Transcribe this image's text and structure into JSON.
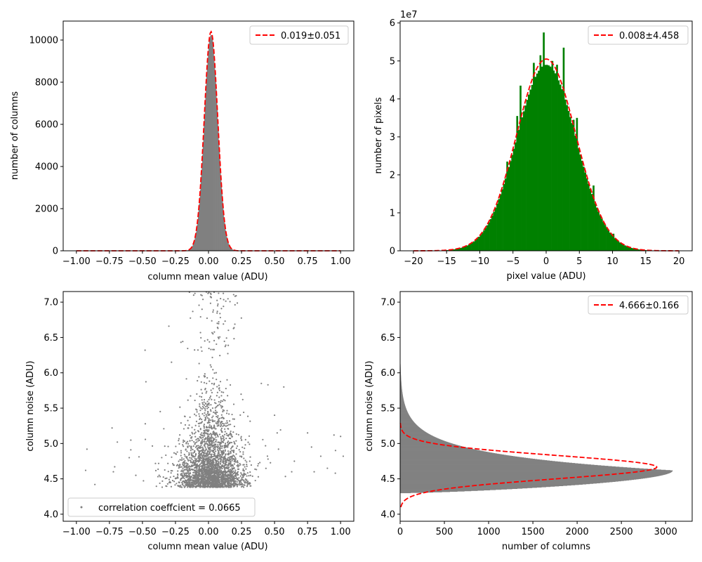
{
  "colors": {
    "gray": "#808080",
    "green": "#008000",
    "red": "#ff0000"
  },
  "chart_data": [
    {
      "type": "histogram",
      "xlabel": "column mean value (ADU)",
      "ylabel": "number of columns",
      "xlim": [
        -1.1,
        1.1
      ],
      "ylim": [
        0,
        10900
      ],
      "xticks": [
        -1.0,
        -0.75,
        -0.5,
        -0.25,
        0.0,
        0.25,
        0.5,
        0.75,
        1.0
      ],
      "xtick_labels": [
        "−1.00",
        "−0.75",
        "−0.50",
        "−0.25",
        "0.00",
        "0.25",
        "0.50",
        "0.75",
        "1.00"
      ],
      "yticks": [
        0,
        2000,
        4000,
        6000,
        8000,
        10000
      ],
      "ytick_labels": [
        "0",
        "2000",
        "4000",
        "6000",
        "8000",
        "10000"
      ],
      "fit": {
        "mu": 0.019,
        "sigma": 0.051,
        "peak": 10400,
        "range": [
          -1.0,
          1.0
        ]
      },
      "legend_label": "0.019±0.051",
      "legend_loc": "upper right"
    },
    {
      "type": "histogram",
      "xlabel": "pixel value (ADU)",
      "ylabel": "number of pixels",
      "offset_text": "1e7",
      "xlim": [
        -22,
        22
      ],
      "ylim": [
        0,
        6.05
      ],
      "xticks": [
        -20,
        -15,
        -10,
        -5,
        0,
        5,
        10,
        15,
        20
      ],
      "xtick_labels": [
        "−20",
        "−15",
        "−10",
        "−5",
        "0",
        "5",
        "10",
        "15",
        "20"
      ],
      "yticks": [
        0,
        1,
        2,
        3,
        4,
        5,
        6
      ],
      "ytick_labels": [
        "0",
        "1",
        "2",
        "3",
        "4",
        "5",
        "6"
      ],
      "fit": {
        "mu": 0.008,
        "sigma": 4.458,
        "peak": 5.05,
        "range": [
          -20,
          20
        ]
      },
      "spikes": [
        {
          "x": -6.0,
          "y": 2.35
        },
        {
          "x": -4.5,
          "y": 3.55
        },
        {
          "x": -4.0,
          "y": 4.35
        },
        {
          "x": -2.0,
          "y": 4.95
        },
        {
          "x": -1.0,
          "y": 5.15
        },
        {
          "x": -0.5,
          "y": 5.75
        },
        {
          "x": 0.8,
          "y": 5.0
        },
        {
          "x": 1.5,
          "y": 4.9
        },
        {
          "x": 2.5,
          "y": 5.35
        },
        {
          "x": 4.0,
          "y": 3.45
        },
        {
          "x": 4.5,
          "y": 3.5
        },
        {
          "x": 7.0,
          "y": 1.72
        },
        {
          "x": 10.0,
          "y": 0.45
        }
      ],
      "legend_label": "0.008±4.458",
      "legend_loc": "upper right"
    },
    {
      "type": "scatter",
      "xlabel": "column mean value (ADU)",
      "ylabel": "column noise (ADU)",
      "xlim": [
        -1.1,
        1.1
      ],
      "ylim": [
        3.9,
        7.15
      ],
      "xticks": [
        -1.0,
        -0.75,
        -0.5,
        -0.25,
        0.0,
        0.25,
        0.5,
        0.75,
        1.0
      ],
      "xtick_labels": [
        "−1.00",
        "−0.75",
        "−0.50",
        "−0.25",
        "0.00",
        "0.25",
        "0.50",
        "0.75",
        "1.00"
      ],
      "yticks": [
        4.0,
        4.5,
        5.0,
        5.5,
        6.0,
        6.5,
        7.0
      ],
      "ytick_labels": [
        "4.0",
        "4.5",
        "5.0",
        "5.5",
        "6.0",
        "6.5",
        "7.0"
      ],
      "distribution": {
        "x_mu": 0.019,
        "x_sigma": 0.09,
        "noise_min": 4.3,
        "noise_mode": 4.62,
        "corr": 0.0665
      },
      "outliers": [
        [
          -0.92,
          4.92
        ],
        [
          -0.93,
          4.62
        ],
        [
          -0.86,
          4.42
        ],
        [
          -0.72,
          4.6
        ],
        [
          -0.71,
          4.67
        ],
        [
          -0.73,
          5.22
        ],
        [
          -0.69,
          5.02
        ],
        [
          -0.6,
          4.8
        ],
        [
          -0.55,
          4.55
        ],
        [
          -0.48,
          6.32
        ],
        [
          -0.3,
          6.66
        ],
        [
          -0.28,
          6.15
        ],
        [
          0.4,
          5.85
        ],
        [
          0.45,
          5.83
        ],
        [
          0.57,
          5.8
        ],
        [
          0.52,
          5.15
        ],
        [
          0.5,
          5.4
        ],
        [
          0.53,
          4.92
        ],
        [
          0.63,
          4.6
        ],
        [
          0.65,
          4.75
        ],
        [
          0.75,
          5.15
        ],
        [
          0.78,
          4.95
        ],
        [
          0.8,
          4.6
        ],
        [
          0.85,
          4.82
        ],
        [
          0.9,
          4.65
        ],
        [
          0.95,
          5.12
        ],
        [
          1.0,
          5.1
        ],
        [
          1.02,
          4.82
        ],
        [
          0.96,
          4.58
        ]
      ],
      "legend_label": "correlation coeffcient = 0.0665",
      "legend_loc": "lower left"
    },
    {
      "type": "histogram",
      "orientation": "horizontal",
      "xlabel": "number of columns",
      "ylabel": "column noise (ADU)",
      "xlim": [
        0,
        3300
      ],
      "ylim": [
        3.9,
        7.15
      ],
      "xticks": [
        0,
        500,
        1000,
        1500,
        2000,
        2500,
        3000
      ],
      "xtick_labels": [
        "0",
        "500",
        "1000",
        "1500",
        "2000",
        "2500",
        "3000"
      ],
      "yticks": [
        4.0,
        4.5,
        5.0,
        5.5,
        6.0,
        6.5,
        7.0
      ],
      "ytick_labels": [
        "4.0",
        "4.5",
        "5.0",
        "5.5",
        "6.0",
        "6.5",
        "7.0"
      ],
      "hist_shape": {
        "start": 4.3,
        "mode": 4.62,
        "end": 6.12,
        "peak": 3080
      },
      "fit": {
        "mu": 4.666,
        "sigma": 0.166,
        "peak": 2900,
        "range": [
          4.1,
          5.3
        ]
      },
      "legend_label": "4.666±0.166",
      "legend_loc": "upper right"
    }
  ]
}
